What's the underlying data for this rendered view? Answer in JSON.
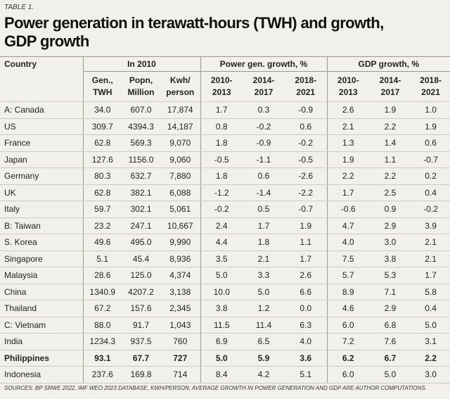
{
  "label": "TABLE 1.",
  "title": "Power generation in terawatt-hours (TWH) and growth, GDP growth",
  "table": {
    "groups": [
      "Country",
      "In 2010",
      "Power gen. growth, %",
      "GDP growth, %"
    ],
    "columns": [
      "Gen.,\nTWH",
      "Popn,\nMillion",
      "Kwh/\nperson",
      "2010-\n2013",
      "2014-\n2017",
      "2018-\n2021",
      "2010-\n2013",
      "2014-\n2017",
      "2018-\n2021"
    ],
    "bold_row": "Philippines",
    "rows": [
      [
        "A: Canada",
        "34.0",
        "607.0",
        "17,874",
        "1.7",
        "0.3",
        "-0.9",
        "2.6",
        "1.9",
        "1.0"
      ],
      [
        "US",
        "309.7",
        "4394.3",
        "14,187",
        "0.8",
        "-0.2",
        "0.6",
        "2.1",
        "2.2",
        "1.9"
      ],
      [
        "France",
        "62.8",
        "569.3",
        "9,070",
        "1.8",
        "-0.9",
        "-0.2",
        "1.3",
        "1.4",
        "0.6"
      ],
      [
        "Japan",
        "127.6",
        "1156.0",
        "9,060",
        "-0.5",
        "-1.1",
        "-0.5",
        "1.9",
        "1.1",
        "-0.7"
      ],
      [
        "Germany",
        "80.3",
        "632.7",
        "7,880",
        "1.8",
        "0.6",
        "-2.6",
        "2.2",
        "2.2",
        "0.2"
      ],
      [
        "UK",
        "62.8",
        "382.1",
        "6,088",
        "-1.2",
        "-1.4",
        "-2.2",
        "1.7",
        "2.5",
        "0.4"
      ],
      [
        "Italy",
        "59.7",
        "302.1",
        "5,061",
        "-0.2",
        "0.5",
        "-0.7",
        "-0.6",
        "0.9",
        "-0.2"
      ],
      [
        "B: Taiwan",
        "23.2",
        "247.1",
        "10,667",
        "2.4",
        "1.7",
        "1.9",
        "4.7",
        "2.9",
        "3.9"
      ],
      [
        "S. Korea",
        "49.6",
        "495.0",
        "9,990",
        "4.4",
        "1.8",
        "1.1",
        "4.0",
        "3.0",
        "2.1"
      ],
      [
        "Singapore",
        "5.1",
        "45.4",
        "8,936",
        "3.5",
        "2.1",
        "1.7",
        "7.5",
        "3.8",
        "2.1"
      ],
      [
        "Malaysia",
        "28.6",
        "125.0",
        "4,374",
        "5.0",
        "3.3",
        "2.6",
        "5.7",
        "5.3",
        "1.7"
      ],
      [
        "China",
        "1340.9",
        "4207.2",
        "3,138",
        "10.0",
        "5.0",
        "6.6",
        "8.9",
        "7.1",
        "5.8"
      ],
      [
        "Thailand",
        "67.2",
        "157.6",
        "2,345",
        "3.8",
        "1.2",
        "0.0",
        "4.6",
        "2.9",
        "0.4"
      ],
      [
        "C: Vietnam",
        "88.0",
        "91.7",
        "1,043",
        "11.5",
        "11.4",
        "6.3",
        "6.0",
        "6.8",
        "5.0"
      ],
      [
        "India",
        "1234.3",
        "937.5",
        "760",
        "6.9",
        "6.5",
        "4.0",
        "7.2",
        "7.6",
        "3.1"
      ],
      [
        "Philippines",
        "93.1",
        "67.7",
        "727",
        "5.0",
        "5.9",
        "3.6",
        "6.2",
        "6.7",
        "2.2"
      ],
      [
        "Indonesia",
        "237.6",
        "169.8",
        "714",
        "8.4",
        "4.2",
        "5.1",
        "6.0",
        "5.0",
        "3.0"
      ]
    ]
  },
  "source": "SOURCES: BP SRWE 2022, IMF WEO 2023 DATABASE, KWH/PERSON, AVERAGE GROWTH IN POWER GENERATION AND GDP ARE AUTHOR COMPUTATIONS."
}
